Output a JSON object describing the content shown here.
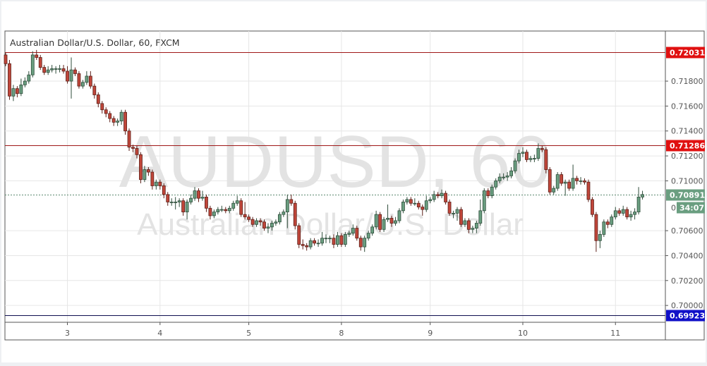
{
  "chart_data": {
    "type": "candlestick",
    "title": "Australian Dollar/U.S. Dollar, 60, FXCM",
    "watermark": [
      "AUDUSD, 60",
      "Australian Dollar/U.S. Dollar"
    ],
    "ylim": [
      0.69865,
      0.72202
    ],
    "grid": true,
    "y_ticks": [
      "0.71800",
      "0.71600",
      "0.71400",
      "0.71200",
      "0.71000",
      "0.70600",
      "0.70400",
      "0.70200",
      "0.70000"
    ],
    "y_tick_values": [
      0.718,
      0.716,
      0.714,
      0.712,
      0.71,
      0.706,
      0.704,
      0.702,
      0.7
    ],
    "x_ticks": [
      {
        "label": "3",
        "bar_index": 16
      },
      {
        "label": "4",
        "bar_index": 40
      },
      {
        "label": "5",
        "bar_index": 63
      },
      {
        "label": "8",
        "bar_index": 87
      },
      {
        "label": "9",
        "bar_index": 110
      },
      {
        "label": "10",
        "bar_index": 134
      },
      {
        "label": "11",
        "bar_index": 158
      }
    ],
    "levels": [
      {
        "value": 0.72031,
        "label": "0.72031",
        "color": "#e01010"
      },
      {
        "value": 0.71286,
        "label": "0.71286",
        "color": "#e01010"
      },
      {
        "value": 0.69923,
        "label": "0.69923",
        "color": "#1010c8"
      }
    ],
    "current_price": {
      "value": 0.70891,
      "label": "0.70891",
      "countdown": "34:07",
      "hidden_tick": "0.",
      "color": "#6a9e80"
    },
    "colors": {
      "up": "#6a9e80",
      "down": "#c0463a",
      "up_border": "#2f4d3b",
      "down_border": "#5c1f18"
    },
    "ohlc": [
      [
        0.7201,
        0.7203,
        0.7192,
        0.7194
      ],
      [
        0.7194,
        0.7197,
        0.7165,
        0.7168
      ],
      [
        0.7168,
        0.7177,
        0.7164,
        0.7174
      ],
      [
        0.7174,
        0.7176,
        0.7167,
        0.717
      ],
      [
        0.717,
        0.7182,
        0.7168,
        0.7177
      ],
      [
        0.7177,
        0.7183,
        0.7175,
        0.718
      ],
      [
        0.718,
        0.7188,
        0.7178,
        0.7185
      ],
      [
        0.7185,
        0.7204,
        0.7183,
        0.7201
      ],
      [
        0.7201,
        0.7205,
        0.7197,
        0.7199
      ],
      [
        0.7199,
        0.7201,
        0.7189,
        0.7191
      ],
      [
        0.7191,
        0.7193,
        0.7185,
        0.7187
      ],
      [
        0.7187,
        0.7192,
        0.7185,
        0.7189
      ],
      [
        0.7189,
        0.7193,
        0.7187,
        0.719
      ],
      [
        0.719,
        0.7192,
        0.7186,
        0.719
      ],
      [
        0.719,
        0.7193,
        0.7187,
        0.719
      ],
      [
        0.719,
        0.7193,
        0.7186,
        0.7188
      ],
      [
        0.7188,
        0.7192,
        0.7178,
        0.718
      ],
      [
        0.718,
        0.7199,
        0.7166,
        0.7189
      ],
      [
        0.7189,
        0.7191,
        0.7184,
        0.7186
      ],
      [
        0.7186,
        0.7188,
        0.7174,
        0.7176
      ],
      [
        0.7176,
        0.7181,
        0.7174,
        0.7179
      ],
      [
        0.7179,
        0.7188,
        0.7177,
        0.7184
      ],
      [
        0.7184,
        0.7188,
        0.7174,
        0.7176
      ],
      [
        0.7176,
        0.7178,
        0.7166,
        0.7169
      ],
      [
        0.7169,
        0.7171,
        0.7159,
        0.7162
      ],
      [
        0.7162,
        0.7164,
        0.7154,
        0.7157
      ],
      [
        0.7157,
        0.7159,
        0.7151,
        0.7154
      ],
      [
        0.7154,
        0.7156,
        0.7147,
        0.715
      ],
      [
        0.715,
        0.7152,
        0.7144,
        0.7147
      ],
      [
        0.7147,
        0.715,
        0.7144,
        0.7148
      ],
      [
        0.7148,
        0.7157,
        0.7145,
        0.7155
      ],
      [
        0.7155,
        0.7157,
        0.7137,
        0.714
      ],
      [
        0.714,
        0.7142,
        0.7124,
        0.7127
      ],
      [
        0.7127,
        0.7129,
        0.7123,
        0.7126
      ],
      [
        0.7126,
        0.7128,
        0.7118,
        0.7121
      ],
      [
        0.7121,
        0.7123,
        0.7098,
        0.7101
      ],
      [
        0.7101,
        0.7112,
        0.7099,
        0.7109
      ],
      [
        0.7109,
        0.7111,
        0.7104,
        0.7107
      ],
      [
        0.7107,
        0.7109,
        0.7093,
        0.7096
      ],
      [
        0.7096,
        0.7101,
        0.7093,
        0.7099
      ],
      [
        0.7099,
        0.7101,
        0.7093,
        0.7096
      ],
      [
        0.7096,
        0.7098,
        0.7086,
        0.7089
      ],
      [
        0.7089,
        0.7091,
        0.708,
        0.7083
      ],
      [
        0.7083,
        0.7086,
        0.708,
        0.7083
      ],
      [
        0.7083,
        0.7087,
        0.7077,
        0.7083
      ],
      [
        0.7083,
        0.7086,
        0.7079,
        0.7084
      ],
      [
        0.7084,
        0.7086,
        0.7072,
        0.7075
      ],
      [
        0.7075,
        0.7085,
        0.7069,
        0.7083
      ],
      [
        0.7083,
        0.7089,
        0.7081,
        0.7086
      ],
      [
        0.7086,
        0.7095,
        0.7084,
        0.7092
      ],
      [
        0.7092,
        0.7094,
        0.7083,
        0.7086
      ],
      [
        0.7086,
        0.7092,
        0.7084,
        0.7087
      ],
      [
        0.7087,
        0.7089,
        0.7075,
        0.7078
      ],
      [
        0.7078,
        0.708,
        0.7069,
        0.7072
      ],
      [
        0.7072,
        0.7077,
        0.707,
        0.7075
      ],
      [
        0.7075,
        0.7079,
        0.7073,
        0.7077
      ],
      [
        0.7077,
        0.708,
        0.7075,
        0.7077
      ],
      [
        0.7077,
        0.7079,
        0.7074,
        0.7076
      ],
      [
        0.7076,
        0.708,
        0.7074,
        0.7078
      ],
      [
        0.7078,
        0.7084,
        0.7076,
        0.7082
      ],
      [
        0.7082,
        0.7088,
        0.708,
        0.7084
      ],
      [
        0.7084,
        0.7086,
        0.7071,
        0.7073
      ],
      [
        0.7073,
        0.7083,
        0.7069,
        0.7071
      ],
      [
        0.7071,
        0.7073,
        0.7067,
        0.7069
      ],
      [
        0.7069,
        0.7071,
        0.7063,
        0.7065
      ],
      [
        0.7065,
        0.707,
        0.7063,
        0.7068
      ],
      [
        0.7068,
        0.707,
        0.7064,
        0.7067
      ],
      [
        0.7067,
        0.7069,
        0.706,
        0.7062
      ],
      [
        0.7062,
        0.7066,
        0.7058,
        0.7063
      ],
      [
        0.7063,
        0.7068,
        0.706,
        0.7066
      ],
      [
        0.7066,
        0.7069,
        0.7064,
        0.7067
      ],
      [
        0.7067,
        0.7075,
        0.7065,
        0.7073
      ],
      [
        0.7073,
        0.7077,
        0.7071,
        0.7075
      ],
      [
        0.7075,
        0.7089,
        0.7062,
        0.7085
      ],
      [
        0.7085,
        0.7089,
        0.708,
        0.7082
      ],
      [
        0.7082,
        0.7084,
        0.7061,
        0.7064
      ],
      [
        0.7064,
        0.7066,
        0.7046,
        0.7049
      ],
      [
        0.7049,
        0.7053,
        0.7045,
        0.7048
      ],
      [
        0.7048,
        0.705,
        0.7044,
        0.7047
      ],
      [
        0.7047,
        0.7054,
        0.7045,
        0.7052
      ],
      [
        0.7052,
        0.7054,
        0.7048,
        0.705
      ],
      [
        0.705,
        0.7053,
        0.7047,
        0.705
      ],
      [
        0.705,
        0.7059,
        0.7048,
        0.7054
      ],
      [
        0.7054,
        0.7057,
        0.705,
        0.7054
      ],
      [
        0.7054,
        0.7056,
        0.705,
        0.7054
      ],
      [
        0.7054,
        0.7057,
        0.7046,
        0.7049
      ],
      [
        0.7049,
        0.7059,
        0.7047,
        0.7056
      ],
      [
        0.7056,
        0.7058,
        0.7047,
        0.7049
      ],
      [
        0.7049,
        0.7059,
        0.7047,
        0.7057
      ],
      [
        0.7057,
        0.706,
        0.7055,
        0.7058
      ],
      [
        0.7058,
        0.7065,
        0.7056,
        0.7062
      ],
      [
        0.7062,
        0.7064,
        0.7052,
        0.7054
      ],
      [
        0.7054,
        0.7056,
        0.7044,
        0.7047
      ],
      [
        0.7047,
        0.7056,
        0.7043,
        0.7054
      ],
      [
        0.7054,
        0.706,
        0.7052,
        0.7058
      ],
      [
        0.7058,
        0.7065,
        0.7056,
        0.7063
      ],
      [
        0.7063,
        0.7076,
        0.7061,
        0.7073
      ],
      [
        0.7073,
        0.7075,
        0.7059,
        0.7061
      ],
      [
        0.7061,
        0.7071,
        0.7059,
        0.7069
      ],
      [
        0.7069,
        0.7081,
        0.7067,
        0.707
      ],
      [
        0.707,
        0.7072,
        0.7063,
        0.7066
      ],
      [
        0.7066,
        0.7071,
        0.7064,
        0.7068
      ],
      [
        0.7068,
        0.7078,
        0.7066,
        0.7076
      ],
      [
        0.7076,
        0.7085,
        0.7074,
        0.7083
      ],
      [
        0.7083,
        0.7087,
        0.7081,
        0.7085
      ],
      [
        0.7085,
        0.7087,
        0.708,
        0.7082
      ],
      [
        0.7082,
        0.7086,
        0.708,
        0.7082
      ],
      [
        0.7082,
        0.7084,
        0.7077,
        0.7079
      ],
      [
        0.7079,
        0.7081,
        0.7072,
        0.7077
      ],
      [
        0.7077,
        0.7088,
        0.7075,
        0.7084
      ],
      [
        0.7084,
        0.7087,
        0.7082,
        0.7085
      ],
      [
        0.7085,
        0.7092,
        0.7083,
        0.7089
      ],
      [
        0.7089,
        0.7091,
        0.7086,
        0.7088
      ],
      [
        0.7088,
        0.7093,
        0.7086,
        0.709
      ],
      [
        0.709,
        0.7092,
        0.7081,
        0.7083
      ],
      [
        0.7083,
        0.7085,
        0.7072,
        0.7074
      ],
      [
        0.7074,
        0.7076,
        0.707,
        0.7074
      ],
      [
        0.7074,
        0.7079,
        0.7068,
        0.7077
      ],
      [
        0.7077,
        0.7079,
        0.7063,
        0.7065
      ],
      [
        0.7065,
        0.707,
        0.7063,
        0.7068
      ],
      [
        0.7068,
        0.707,
        0.7058,
        0.7061
      ],
      [
        0.7061,
        0.7064,
        0.7058,
        0.7062
      ],
      [
        0.7062,
        0.7068,
        0.7058,
        0.7066
      ],
      [
        0.7066,
        0.7085,
        0.7064,
        0.7076
      ],
      [
        0.7076,
        0.7094,
        0.7074,
        0.7092
      ],
      [
        0.7092,
        0.7094,
        0.7086,
        0.7088
      ],
      [
        0.7088,
        0.7097,
        0.7086,
        0.7095
      ],
      [
        0.7095,
        0.7102,
        0.7093,
        0.71
      ],
      [
        0.71,
        0.7106,
        0.7098,
        0.7103
      ],
      [
        0.7103,
        0.7106,
        0.7101,
        0.7103
      ],
      [
        0.7103,
        0.7107,
        0.71,
        0.7104
      ],
      [
        0.7104,
        0.7111,
        0.7102,
        0.7108
      ],
      [
        0.7108,
        0.7118,
        0.7106,
        0.7116
      ],
      [
        0.7116,
        0.7125,
        0.7114,
        0.7122
      ],
      [
        0.7122,
        0.7127,
        0.7119,
        0.7123
      ],
      [
        0.7123,
        0.7125,
        0.7115,
        0.7117
      ],
      [
        0.7117,
        0.712,
        0.7115,
        0.7118
      ],
      [
        0.7118,
        0.7121,
        0.7115,
        0.7118
      ],
      [
        0.7118,
        0.713,
        0.7116,
        0.7126
      ],
      [
        0.7126,
        0.7128,
        0.7123,
        0.7125
      ],
      [
        0.7125,
        0.7127,
        0.7106,
        0.7109
      ],
      [
        0.7109,
        0.7111,
        0.7089,
        0.7091
      ],
      [
        0.7091,
        0.7096,
        0.7089,
        0.7094
      ],
      [
        0.7094,
        0.7107,
        0.7092,
        0.7105
      ],
      [
        0.7105,
        0.7107,
        0.7096,
        0.7098
      ],
      [
        0.7098,
        0.7101,
        0.7088,
        0.7099
      ],
      [
        0.7099,
        0.7101,
        0.7092,
        0.7094
      ],
      [
        0.7094,
        0.7113,
        0.7092,
        0.7102
      ],
      [
        0.7102,
        0.7104,
        0.7097,
        0.71
      ],
      [
        0.71,
        0.7103,
        0.7097,
        0.71
      ],
      [
        0.71,
        0.7102,
        0.7097,
        0.7099
      ],
      [
        0.7099,
        0.7101,
        0.7083,
        0.7085
      ],
      [
        0.7085,
        0.7087,
        0.7071,
        0.7073
      ],
      [
        0.7073,
        0.7075,
        0.7043,
        0.7052
      ],
      [
        0.7052,
        0.706,
        0.7046,
        0.7057
      ],
      [
        0.7057,
        0.7069,
        0.7055,
        0.7067
      ],
      [
        0.7067,
        0.7069,
        0.7062,
        0.7065
      ],
      [
        0.7065,
        0.7073,
        0.7063,
        0.7071
      ],
      [
        0.7071,
        0.7079,
        0.7069,
        0.7076
      ],
      [
        0.7076,
        0.7078,
        0.7072,
        0.7074
      ],
      [
        0.7074,
        0.708,
        0.7072,
        0.7077
      ],
      [
        0.7077,
        0.7079,
        0.7069,
        0.7071
      ],
      [
        0.7071,
        0.7076,
        0.7068,
        0.7073
      ],
      [
        0.7073,
        0.7078,
        0.7069,
        0.7075
      ],
      [
        0.7075,
        0.7095,
        0.7073,
        0.7087
      ],
      [
        0.7087,
        0.7092,
        0.7085,
        0.7089
      ]
    ]
  }
}
